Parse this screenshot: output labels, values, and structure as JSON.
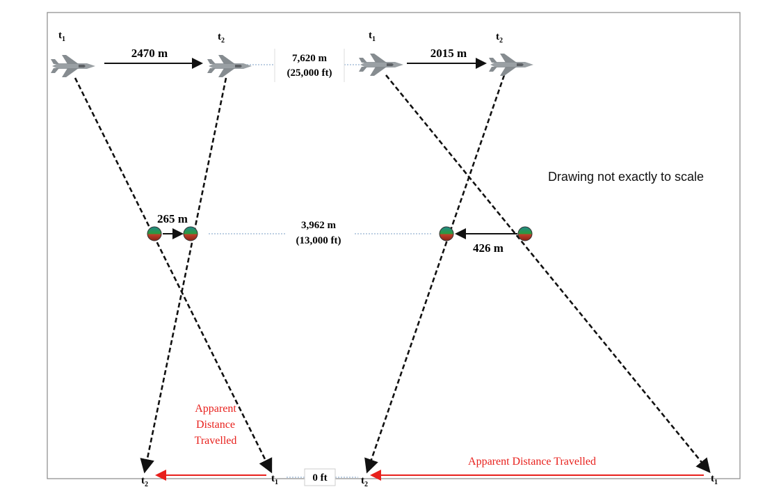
{
  "left": {
    "plane_labels": [
      {
        "base": "t",
        "sub": "1"
      },
      {
        "base": "t",
        "sub": "2"
      }
    ],
    "plane_distance": "2470 m",
    "object_distance": "265 m",
    "ground_labels": [
      {
        "base": "t",
        "sub": "2"
      },
      {
        "base": "t",
        "sub": "1"
      }
    ],
    "apparent_label": [
      "Apparent",
      "Distance",
      "Travelled"
    ]
  },
  "center": {
    "plane_altitude": [
      "7,620 m",
      "(25,000 ft)"
    ],
    "object_altitude": [
      "3,962 m",
      "(13,000 ft)"
    ],
    "ground_altitude": "0 ft"
  },
  "right": {
    "plane_labels": [
      {
        "base": "t",
        "sub": "1"
      },
      {
        "base": "t",
        "sub": "2"
      }
    ],
    "plane_distance": "2015 m",
    "object_distance": "426 m",
    "ground_labels": [
      {
        "base": "t",
        "sub": "2"
      },
      {
        "base": "t",
        "sub": "1"
      }
    ],
    "apparent_label": "Apparent Distance Travelled"
  },
  "note": "Drawing not exactly to scale"
}
